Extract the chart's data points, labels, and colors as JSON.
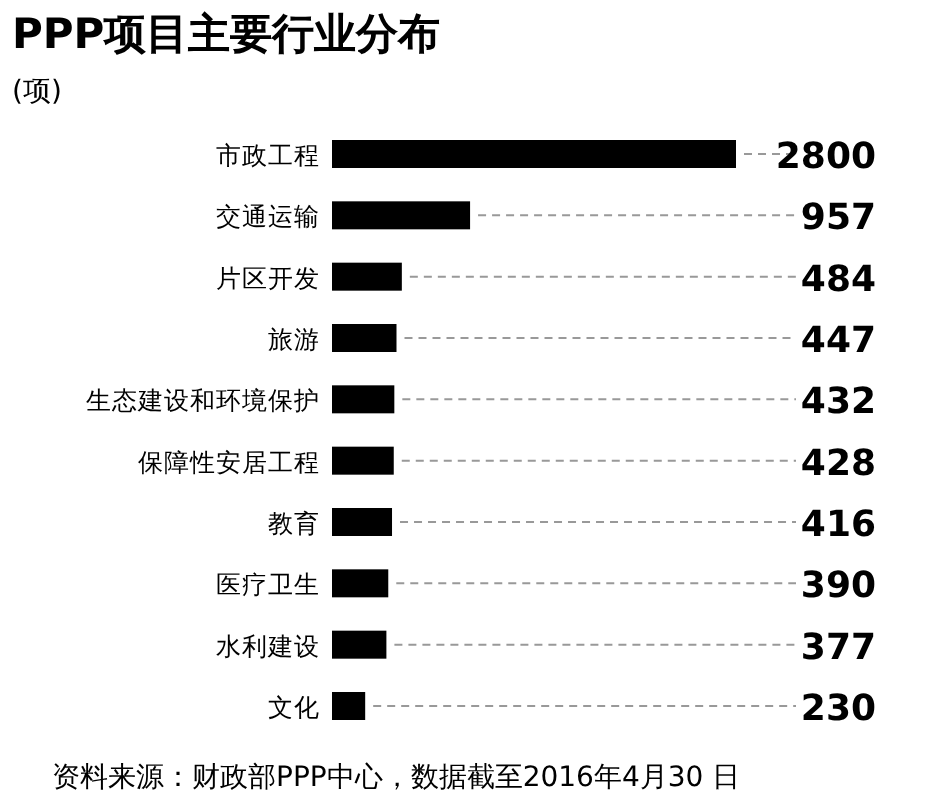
{
  "chart_data": {
    "type": "bar",
    "orientation": "horizontal",
    "title": "PPP项目主要行业分布",
    "subtitle": "(项)",
    "categories": [
      "市政工程",
      "交通运输",
      "片区开发",
      "旅游",
      "生态建设和环境保护",
      "保障性安居工程",
      "教育",
      "医疗卫生",
      "水利建设",
      "文化"
    ],
    "values": [
      2800,
      957,
      484,
      447,
      432,
      428,
      416,
      390,
      377,
      230
    ],
    "color": "#000000",
    "data_labels": true,
    "annotations": [
      "资料来源：财政部PPP中心，数据截至2016年4月30 日"
    ]
  }
}
